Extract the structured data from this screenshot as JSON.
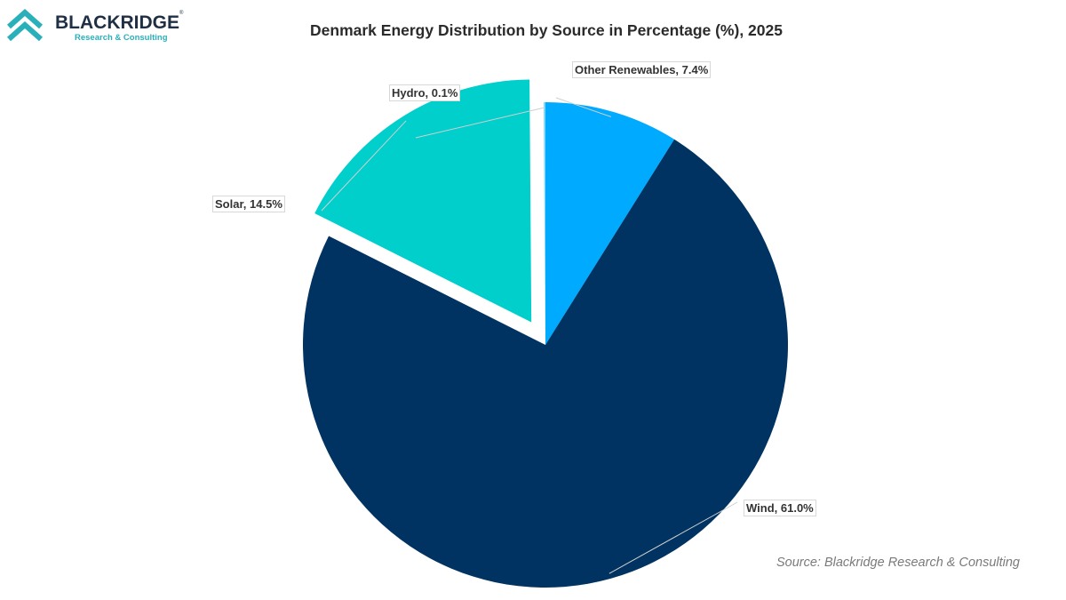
{
  "logo": {
    "name": "BLACKRIDGE",
    "tagline": "Research & Consulting",
    "brand_color": "#2ab0ba",
    "dark_color": "#1f2f44"
  },
  "chart_data": {
    "type": "pie",
    "title": "Denmark Energy Distribution by Source in Percentage (%), 2025",
    "slices": [
      {
        "label": "Other Renewables, 7.4%",
        "value": 7.4,
        "color": "#00aaff",
        "exploded": false
      },
      {
        "label": "Wind, 61.0%",
        "value": 61.0,
        "color": "#003361",
        "exploded": false
      },
      {
        "label": "Solar, 14.5%",
        "value": 14.5,
        "color": "#00cfcc",
        "exploded": true
      },
      {
        "label": "Hydro, 0.1%",
        "value": 0.1,
        "color": "#7fd8ff",
        "exploded": false
      }
    ],
    "source": "Source: Blackridge Research & Consulting"
  }
}
